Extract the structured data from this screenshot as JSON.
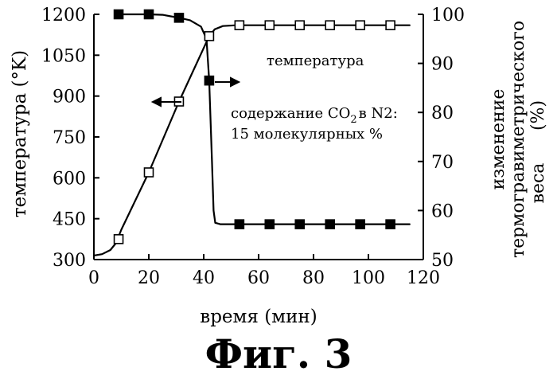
{
  "figure": {
    "caption": "Фиг. 3"
  },
  "chart_data": {
    "type": "line",
    "title": "",
    "xlabel": "время (мин)",
    "ylabel_left": "температура (°K)",
    "ylabel_right_lines": [
      "изменение",
      "термогравиметрического",
      "веса",
      "(%)"
    ],
    "xlim": [
      0,
      120
    ],
    "ylim_left": [
      300,
      1200
    ],
    "ylim_right": [
      50,
      100
    ],
    "x_ticks": [
      "0",
      "20",
      "40",
      "60",
      "80",
      "100",
      "120"
    ],
    "y_left_ticks": [
      "300",
      "450",
      "600",
      "750",
      "900",
      "1050",
      "1200"
    ],
    "y_right_ticks": [
      "50",
      "60",
      "70",
      "80",
      "90",
      "100"
    ],
    "grid": false,
    "annotations": {
      "temperature_label": "температура",
      "co2_label_prefix": "содержание CO",
      "co2_label_sub": "2",
      "co2_label_suffix": "в N2:",
      "co2_label_line2": "15 молекулярных %"
    },
    "series": [
      {
        "name": "температура",
        "axis": "left",
        "marker": "open-square",
        "x": [
          9,
          20,
          31,
          42,
          53,
          64,
          75,
          86,
          97,
          108
        ],
        "values": [
          375,
          620,
          880,
          1120,
          1160,
          1160,
          1160,
          1160,
          1160,
          1160
        ],
        "curve_x": [
          0,
          3,
          6,
          8,
          10,
          20,
          31,
          42,
          44,
          47,
          52,
          60,
          80,
          100,
          115
        ],
        "curve_y": [
          315,
          320,
          335,
          360,
          410,
          620,
          880,
          1120,
          1145,
          1157,
          1160,
          1160,
          1160,
          1160,
          1160
        ]
      },
      {
        "name": "изменение термогравиметрического веса",
        "axis": "right",
        "marker": "filled-square",
        "x": [
          9,
          20,
          31,
          42,
          53,
          64,
          75,
          86,
          97,
          108
        ],
        "values": [
          100,
          100,
          99.3,
          86.5,
          57.2,
          57.2,
          57.2,
          57.2,
          57.2,
          57.2
        ],
        "curve_x": [
          9,
          20,
          25,
          28,
          31,
          35,
          39,
          41,
          42,
          43,
          43.6,
          44.2,
          46,
          52,
          60,
          80,
          100,
          115
        ],
        "curve_y": [
          100,
          100,
          99.9,
          99.6,
          99.3,
          98.8,
          97.5,
          95,
          86.5,
          70,
          60,
          57.5,
          57.2,
          57.2,
          57.2,
          57.2,
          57.2,
          57.2
        ]
      }
    ]
  }
}
